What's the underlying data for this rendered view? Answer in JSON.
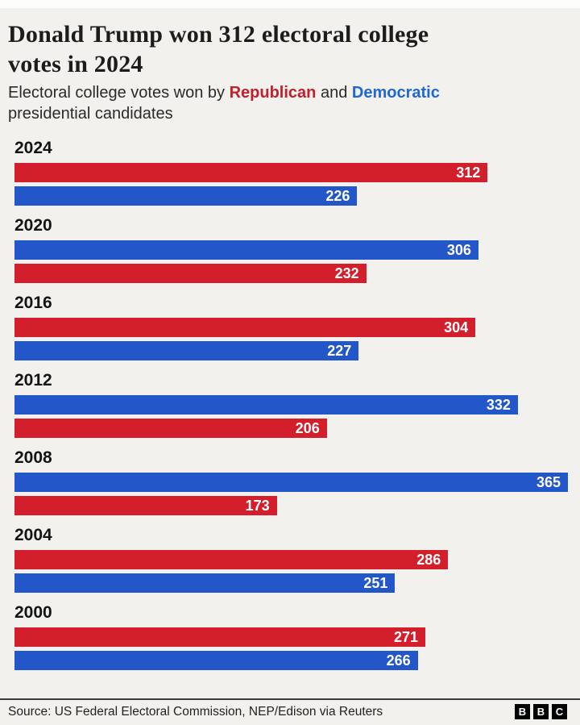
{
  "header": {
    "title_lines": [
      "Donald Trump won 312 electoral college",
      "votes in 2024"
    ],
    "subtitle_prefix": "Electoral college votes won by ",
    "subtitle_republican": "Republican",
    "subtitle_and": " and ",
    "subtitle_democratic": "Democratic",
    "subtitle_line2": "presidential candidates"
  },
  "colors": {
    "republican_bar": "#d21f2b",
    "democrat_bar": "#2356c8",
    "republican_text": "#c1202d",
    "democrat_text": "#1f68d4",
    "background": "#f2f1ee"
  },
  "chart_data": {
    "type": "bar",
    "orientation": "horizontal",
    "title": "Donald Trump won 312 electoral college votes in 2024",
    "subtitle": "Electoral college votes won by Republican and Democratic presidential candidates",
    "value_axis_max": 365,
    "legend": [
      {
        "name": "Republican",
        "color": "#d21f2b"
      },
      {
        "name": "Democratic",
        "color": "#2356c8"
      }
    ],
    "groups": [
      {
        "year": "2024",
        "bars": [
          {
            "party": "republican",
            "value": 312
          },
          {
            "party": "democrat",
            "value": 226
          }
        ]
      },
      {
        "year": "2020",
        "bars": [
          {
            "party": "democrat",
            "value": 306
          },
          {
            "party": "republican",
            "value": 232
          }
        ]
      },
      {
        "year": "2016",
        "bars": [
          {
            "party": "republican",
            "value": 304
          },
          {
            "party": "democrat",
            "value": 227
          }
        ]
      },
      {
        "year": "2012",
        "bars": [
          {
            "party": "democrat",
            "value": 332
          },
          {
            "party": "republican",
            "value": 206
          }
        ]
      },
      {
        "year": "2008",
        "bars": [
          {
            "party": "democrat",
            "value": 365
          },
          {
            "party": "republican",
            "value": 173
          }
        ]
      },
      {
        "year": "2004",
        "bars": [
          {
            "party": "republican",
            "value": 286
          },
          {
            "party": "democrat",
            "value": 251
          }
        ]
      },
      {
        "year": "2000",
        "bars": [
          {
            "party": "republican",
            "value": 271
          },
          {
            "party": "democrat",
            "value": 266
          }
        ]
      }
    ]
  },
  "footer": {
    "source": "Source: US Federal Electoral Commission, NEP/Edison via Reuters",
    "logo_letters": [
      "B",
      "B",
      "C"
    ]
  }
}
